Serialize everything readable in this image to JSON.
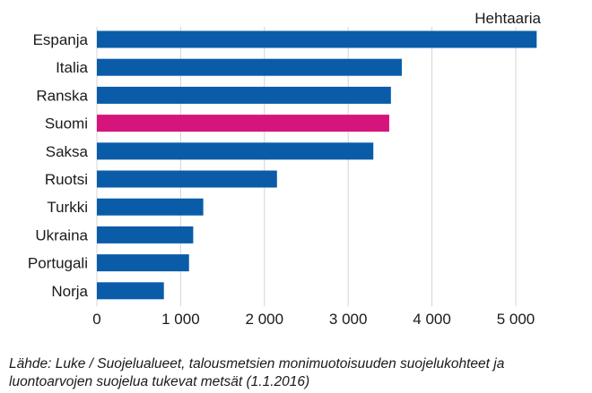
{
  "chart_data": {
    "type": "bar",
    "orientation": "horizontal",
    "unit_label": "Hehtaaria",
    "categories": [
      "Espanja",
      "Italia",
      "Ranska",
      "Suomi",
      "Saksa",
      "Ruotsi",
      "Turkki",
      "Ukraina",
      "Portugali",
      "Norja"
    ],
    "values": [
      5250,
      3640,
      3510,
      3490,
      3300,
      2150,
      1270,
      1150,
      1100,
      800
    ],
    "highlight_category": "Suomi",
    "colors": {
      "bar": "#0a5ca8",
      "highlight": "#d6157c",
      "grid": "#d4d4d4"
    },
    "xlim": [
      0,
      5300
    ],
    "x_ticks": [
      0,
      1000,
      2000,
      3000,
      4000,
      5000
    ],
    "x_tick_labels": [
      "0",
      "1 000",
      "2 000",
      "3 000",
      "4 000",
      "5 000"
    ],
    "grid": true,
    "grid_axis": "x"
  },
  "source": {
    "line1": "Lähde: Luke / Suojelualueet, talousmetsien monimuotoisuuden suojelukohteet ja",
    "line2": "luontoarvojen suojelua tukevat metsät (1.1.2016)"
  }
}
